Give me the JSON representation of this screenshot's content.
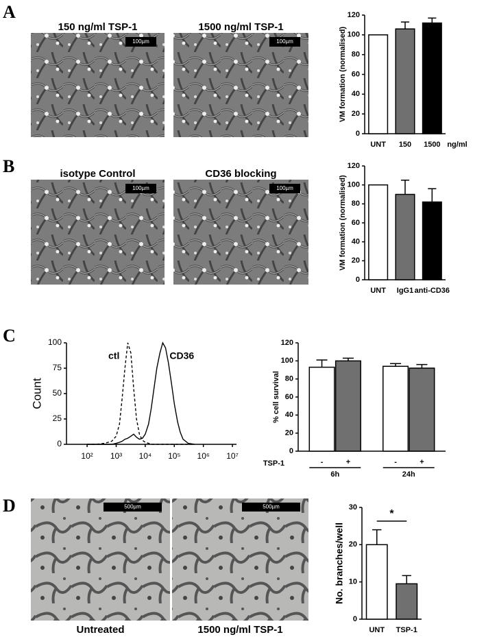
{
  "panels": [
    {
      "label": "A",
      "images": [
        {
          "caption": "150 ng/ml TSP-1",
          "scale_bar": "100µm"
        },
        {
          "caption": "1500 ng/ml TSP-1",
          "scale_bar": "100µm"
        }
      ]
    },
    {
      "label": "B",
      "images": [
        {
          "caption": "isotype Control",
          "scale_bar": "100µm"
        },
        {
          "caption": "CD36 blocking",
          "scale_bar": "100µm"
        }
      ]
    },
    {
      "label": "C",
      "images": []
    },
    {
      "label": "D",
      "images": [
        {
          "caption": "Untreated",
          "scale_bar": "500µm"
        },
        {
          "caption": "1500 ng/ml TSP-1",
          "scale_bar": "500µm"
        }
      ]
    }
  ],
  "chart_data": [
    {
      "type": "bar",
      "ylabel": "VM formation (normalised)",
      "categories": [
        "UNT",
        "150",
        "1500"
      ],
      "x_unit": "ng/ml",
      "values": [
        100,
        106,
        112
      ],
      "errors": [
        null,
        7,
        5
      ],
      "colors": [
        "#ffffff",
        "#707070",
        "#000000"
      ],
      "ylim": [
        0,
        120
      ],
      "yticks": [
        0,
        20,
        40,
        60,
        80,
        100,
        120
      ]
    },
    {
      "type": "bar",
      "ylabel": "VM formation (normalised)",
      "categories": [
        "UNT",
        "IgG1",
        "anti-CD36"
      ],
      "values": [
        100,
        90,
        82
      ],
      "errors": [
        null,
        15,
        14
      ],
      "colors": [
        "#ffffff",
        "#707070",
        "#000000"
      ],
      "ylim": [
        0,
        120
      ],
      "yticks": [
        0,
        20,
        40,
        60,
        80,
        100,
        120
      ]
    },
    {
      "type": "line",
      "ylabel": "Count",
      "xscale": "log",
      "x": [
        100,
        200,
        400,
        700,
        1000,
        1300,
        1600,
        2000,
        2500,
        3200,
        4000,
        5000,
        6300,
        8000,
        10000,
        13000,
        16000,
        20000,
        25000,
        32000,
        40000,
        50000,
        63000,
        80000,
        100000,
        130000,
        160000,
        200000,
        300000,
        500000
      ],
      "series": [
        {
          "name": "ctl",
          "dash": "dashed",
          "color": "#000000",
          "values": [
            0,
            0,
            1,
            3,
            8,
            20,
            45,
            75,
            100,
            90,
            55,
            25,
            10,
            4,
            2,
            1,
            0,
            0,
            0,
            0,
            0,
            0,
            0,
            0,
            0,
            0,
            0,
            0,
            0,
            0
          ]
        },
        {
          "name": "CD36",
          "dash": "solid",
          "color": "#000000",
          "values": [
            0,
            0,
            0,
            0,
            1,
            2,
            3,
            5,
            6,
            8,
            10,
            7,
            5,
            6,
            10,
            20,
            35,
            55,
            75,
            90,
            100,
            95,
            80,
            60,
            40,
            22,
            12,
            5,
            1,
            0
          ]
        }
      ],
      "xlim": [
        19.5,
        13800000
      ],
      "xticks": [
        {
          "value": 100,
          "label": "10²"
        },
        {
          "value": 1000,
          "label": "10³"
        },
        {
          "value": 10000,
          "label": "10⁴"
        },
        {
          "value": 100000,
          "label": "10⁵"
        },
        {
          "value": 1000000,
          "label": "10⁶"
        },
        {
          "value": 10000000,
          "label": "10⁷"
        }
      ],
      "ylim": [
        0,
        100
      ],
      "yticks": [
        0,
        25,
        50,
        75,
        100
      ]
    },
    {
      "type": "bar",
      "ylabel": "% cell survival",
      "categories": [
        "-",
        "+",
        "-",
        "+"
      ],
      "groups": [
        "6h",
        "24h"
      ],
      "row_label": "TSP-1",
      "values": [
        93,
        100,
        94,
        92
      ],
      "errors": [
        8,
        3,
        3,
        4
      ],
      "colors": [
        "#ffffff",
        "#707070",
        "#ffffff",
        "#707070"
      ],
      "ylim": [
        0,
        120
      ],
      "yticks": [
        0,
        20,
        40,
        60,
        80,
        100,
        120
      ]
    },
    {
      "type": "bar",
      "ylabel": "No. branches/well",
      "categories": [
        "UNT",
        "TSP-1"
      ],
      "annotation": "*",
      "values": [
        20,
        9.5
      ],
      "errors": [
        4,
        2.2
      ],
      "colors": [
        "#ffffff",
        "#707070"
      ],
      "ylim": [
        0,
        30
      ],
      "yticks": [
        0,
        10,
        20,
        30
      ]
    }
  ]
}
